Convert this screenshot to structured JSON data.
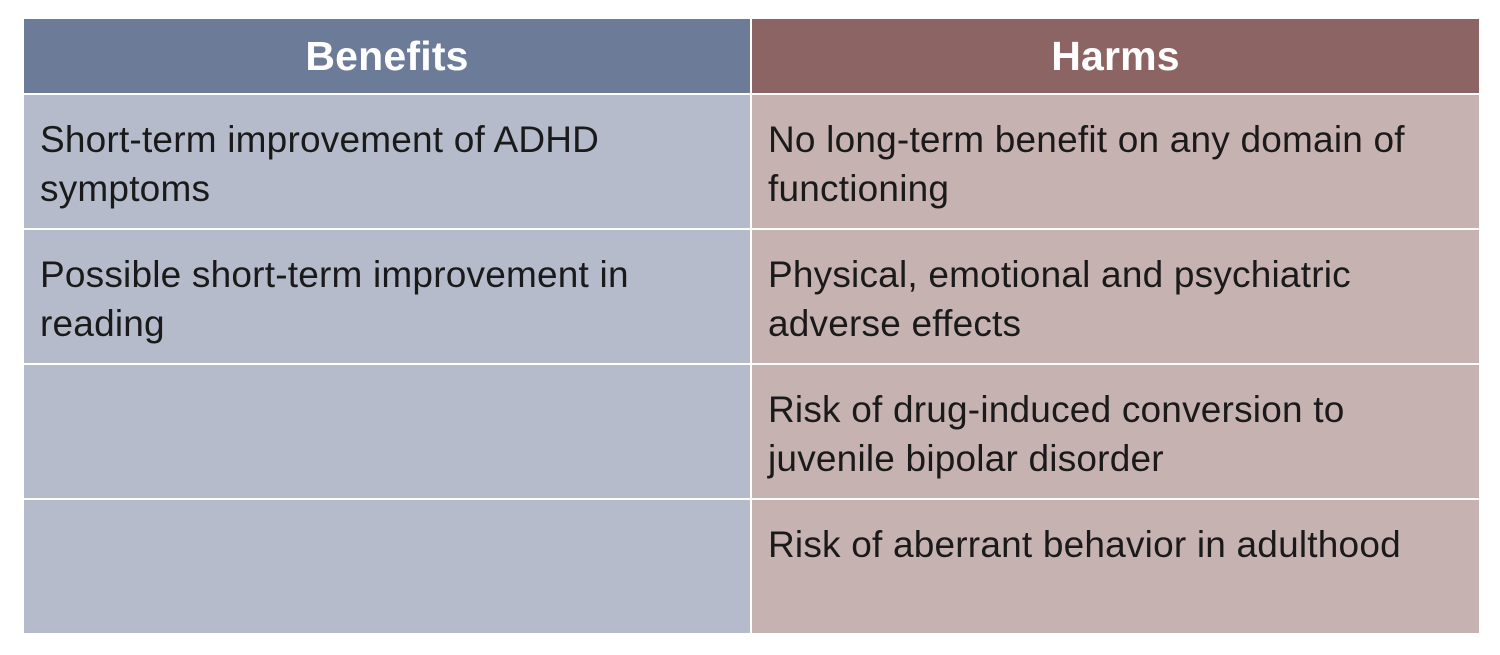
{
  "table": {
    "headers": {
      "benefits": "Benefits",
      "harms": "Harms"
    },
    "rows": [
      {
        "benefit": "Short-term improvement of ADHD symptoms",
        "harm": "No long-term benefit on any domain of functioning"
      },
      {
        "benefit": "Possible short-term improvement in reading",
        "harm": "Physical, emotional and psychiatric adverse effects"
      },
      {
        "benefit": "",
        "harm": "Risk of drug-induced conversion to juvenile bipolar disorder"
      },
      {
        "benefit": "",
        "harm": "Risk of aberrant behavior in adulthood"
      }
    ]
  },
  "colors": {
    "benefits_header": "#6c7b98",
    "harms_header": "#8d6464",
    "benefits_cell": "#b5bbcb",
    "harms_cell": "#c6b2b1"
  }
}
